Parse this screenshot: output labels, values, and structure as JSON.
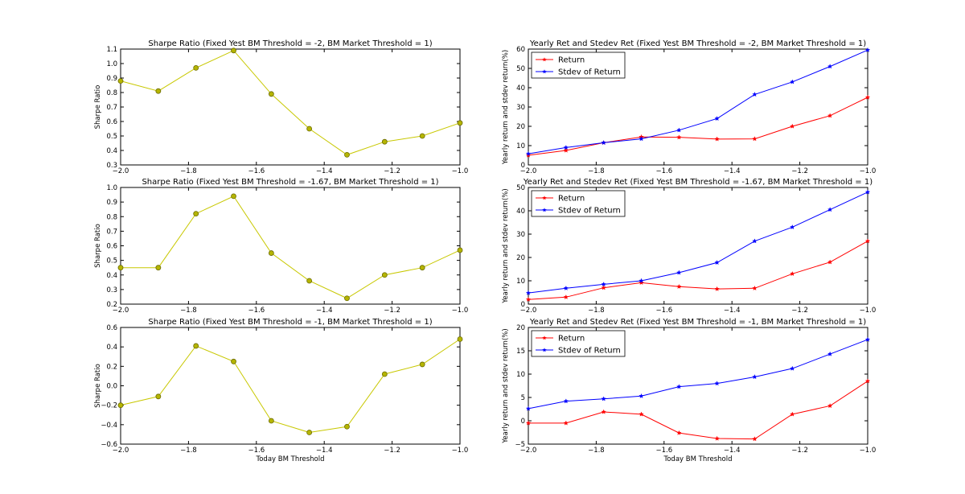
{
  "chart_data": [
    {
      "type": "line",
      "title": "Sharpe Ratio (Fixed Yest BM Threshold = -2, BM Market Threshold = 1)",
      "xlabel": "",
      "ylabel": "Sharpe Ratio",
      "xlim": [
        -2.0,
        -1.0
      ],
      "ylim": [
        0.3,
        1.1
      ],
      "xticks": [
        -2.0,
        -1.8,
        -1.6,
        -1.4,
        -1.2,
        -1.0
      ],
      "xtick_labels": [
        "−2.0",
        "−1.8",
        "−1.6",
        "−1.4",
        "−1.2",
        "−1.0"
      ],
      "yticks": [
        0.3,
        0.4,
        0.5,
        0.6,
        0.7,
        0.8,
        0.9,
        1.0,
        1.1
      ],
      "ytick_labels": [
        "0.3",
        "0.4",
        "0.5",
        "0.6",
        "0.7",
        "0.8",
        "0.9",
        "1.0",
        "1.1"
      ],
      "x": [
        -2.0,
        -1.889,
        -1.778,
        -1.667,
        -1.556,
        -1.444,
        -1.333,
        -1.222,
        -1.111,
        -1.0
      ],
      "series": [
        {
          "name": "Sharpe Ratio",
          "color": "#c8c800",
          "marker": "circle",
          "values": [
            0.88,
            0.81,
            0.97,
            1.09,
            0.79,
            0.55,
            0.37,
            0.46,
            0.5,
            0.59
          ]
        }
      ]
    },
    {
      "type": "line",
      "title": "Yearly Ret and Stedev Ret (Fixed Yest BM Threshold = -2, BM Market Threshold = 1)",
      "xlabel": "",
      "ylabel": "Yearly return and stdev return(%)",
      "xlim": [
        -2.0,
        -1.0
      ],
      "ylim": [
        0,
        60
      ],
      "xticks": [
        -2.0,
        -1.8,
        -1.6,
        -1.4,
        -1.2,
        -1.0
      ],
      "xtick_labels": [
        "−2.0",
        "−1.8",
        "−1.6",
        "−1.4",
        "−1.2",
        "−1.0"
      ],
      "yticks": [
        0,
        10,
        20,
        30,
        40,
        50,
        60
      ],
      "ytick_labels": [
        "0",
        "10",
        "20",
        "30",
        "40",
        "50",
        "60"
      ],
      "legend": "top-left",
      "x": [
        -2.0,
        -1.889,
        -1.778,
        -1.667,
        -1.556,
        -1.444,
        -1.333,
        -1.222,
        -1.111,
        -1.0
      ],
      "series": [
        {
          "name": "Return",
          "color": "#ff0000",
          "marker": "star",
          "values": [
            5.0,
            7.5,
            11.5,
            14.5,
            14.3,
            13.4,
            13.5,
            20.0,
            25.5,
            35.0
          ]
        },
        {
          "name": "Stdev of Return",
          "color": "#0000ff",
          "marker": "star",
          "values": [
            5.8,
            9.0,
            11.5,
            13.5,
            18.0,
            24.0,
            36.5,
            43.0,
            51.0,
            59.5
          ]
        }
      ]
    },
    {
      "type": "line",
      "title": "Sharpe Ratio (Fixed Yest BM Threshold = -1.67, BM Market Threshold = 1)",
      "xlabel": "",
      "ylabel": "Sharpe Ratio",
      "xlim": [
        -2.0,
        -1.0
      ],
      "ylim": [
        0.2,
        1.0
      ],
      "xticks": [
        -2.0,
        -1.8,
        -1.6,
        -1.4,
        -1.2,
        -1.0
      ],
      "xtick_labels": [
        "−2.0",
        "−1.8",
        "−1.6",
        "−1.4",
        "−1.2",
        "−1.0"
      ],
      "yticks": [
        0.2,
        0.3,
        0.4,
        0.5,
        0.6,
        0.7,
        0.8,
        0.9,
        1.0
      ],
      "ytick_labels": [
        "0.2",
        "0.3",
        "0.4",
        "0.5",
        "0.6",
        "0.7",
        "0.8",
        "0.9",
        "1.0"
      ],
      "x": [
        -2.0,
        -1.889,
        -1.778,
        -1.667,
        -1.556,
        -1.444,
        -1.333,
        -1.222,
        -1.111,
        -1.0
      ],
      "series": [
        {
          "name": "Sharpe Ratio",
          "color": "#c8c800",
          "marker": "circle",
          "values": [
            0.45,
            0.45,
            0.82,
            0.94,
            0.55,
            0.36,
            0.24,
            0.4,
            0.45,
            0.57
          ]
        }
      ]
    },
    {
      "type": "line",
      "title": "Yearly Ret and Stedev Ret (Fixed Yest BM Threshold = -1.67, BM Market Threshold = 1)",
      "xlabel": "",
      "ylabel": "Yearly return and stdev return(%)",
      "xlim": [
        -2.0,
        -1.0
      ],
      "ylim": [
        0,
        50
      ],
      "xticks": [
        -2.0,
        -1.8,
        -1.6,
        -1.4,
        -1.2,
        -1.0
      ],
      "xtick_labels": [
        "−2.0",
        "−1.8",
        "−1.6",
        "−1.4",
        "−1.2",
        "−1.0"
      ],
      "yticks": [
        0,
        10,
        20,
        30,
        40,
        50
      ],
      "ytick_labels": [
        "0",
        "10",
        "20",
        "30",
        "40",
        "50"
      ],
      "legend": "top-left",
      "x": [
        -2.0,
        -1.889,
        -1.778,
        -1.667,
        -1.556,
        -1.444,
        -1.333,
        -1.222,
        -1.111,
        -1.0
      ],
      "series": [
        {
          "name": "Return",
          "color": "#ff0000",
          "marker": "star",
          "values": [
            2.0,
            3.0,
            7.0,
            9.2,
            7.5,
            6.5,
            6.8,
            13.0,
            18.0,
            27.0
          ]
        },
        {
          "name": "Stdev of Return",
          "color": "#0000ff",
          "marker": "star",
          "values": [
            4.8,
            6.8,
            8.5,
            10.0,
            13.5,
            17.8,
            27.0,
            33.0,
            40.5,
            48.0
          ]
        }
      ]
    },
    {
      "type": "line",
      "title": "Sharpe Ratio (Fixed Yest BM Threshold = -1, BM Market Threshold = 1)",
      "xlabel": "Today BM Threshold",
      "ylabel": "Sharpe Ratio",
      "xlim": [
        -2.0,
        -1.0
      ],
      "ylim": [
        -0.6,
        0.6
      ],
      "xticks": [
        -2.0,
        -1.8,
        -1.6,
        -1.4,
        -1.2,
        -1.0
      ],
      "xtick_labels": [
        "−2.0",
        "−1.8",
        "−1.6",
        "−1.4",
        "−1.2",
        "−1.0"
      ],
      "yticks": [
        -0.6,
        -0.4,
        -0.2,
        0.0,
        0.2,
        0.4,
        0.6
      ],
      "ytick_labels": [
        "−0.6",
        "−0.4",
        "−0.2",
        "0.0",
        "0.2",
        "0.4",
        "0.6"
      ],
      "x": [
        -2.0,
        -1.889,
        -1.778,
        -1.667,
        -1.556,
        -1.444,
        -1.333,
        -1.222,
        -1.111,
        -1.0
      ],
      "series": [
        {
          "name": "Sharpe Ratio",
          "color": "#c8c800",
          "marker": "circle",
          "values": [
            -0.2,
            -0.11,
            0.41,
            0.25,
            -0.36,
            -0.48,
            -0.42,
            0.12,
            0.22,
            0.48
          ]
        }
      ]
    },
    {
      "type": "line",
      "title": "Yearly Ret and Stedev Ret (Fixed Yest BM Threshold = -1, BM Market Threshold = 1)",
      "xlabel": "Today BM Threshold",
      "ylabel": "Yearly return and stdev return(%)",
      "xlim": [
        -2.0,
        -1.0
      ],
      "ylim": [
        -5,
        20
      ],
      "xticks": [
        -2.0,
        -1.8,
        -1.6,
        -1.4,
        -1.2,
        -1.0
      ],
      "xtick_labels": [
        "−2.0",
        "−1.8",
        "−1.6",
        "−1.4",
        "−1.2",
        "−1.0"
      ],
      "yticks": [
        -5,
        0,
        5,
        10,
        15,
        20
      ],
      "ytick_labels": [
        "−5",
        "0",
        "5",
        "10",
        "15",
        "20"
      ],
      "legend": "top-left",
      "x": [
        -2.0,
        -1.889,
        -1.778,
        -1.667,
        -1.556,
        -1.444,
        -1.333,
        -1.222,
        -1.111,
        -1.0
      ],
      "series": [
        {
          "name": "Return",
          "color": "#ff0000",
          "marker": "star",
          "values": [
            -0.5,
            -0.5,
            1.9,
            1.4,
            -2.6,
            -3.8,
            -3.9,
            1.4,
            3.2,
            8.5
          ]
        },
        {
          "name": "Stdev of Return",
          "color": "#0000ff",
          "marker": "star",
          "values": [
            2.6,
            4.2,
            4.7,
            5.3,
            7.3,
            8.0,
            9.4,
            11.2,
            14.3,
            17.4
          ]
        }
      ]
    }
  ]
}
